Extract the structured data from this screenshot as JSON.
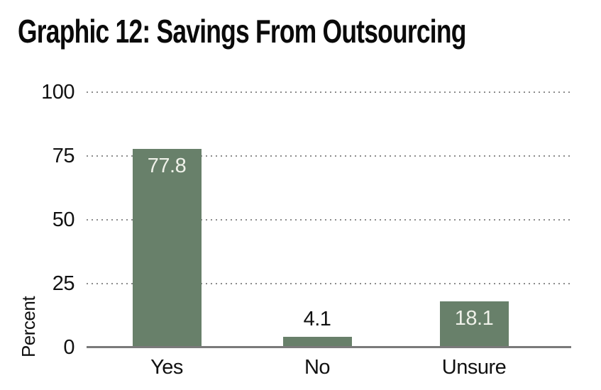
{
  "figure": {
    "title": "Graphic 12: Savings From Outsourcing"
  },
  "colors": {
    "bar": "#68806a",
    "axis_line": "#7a7a7a",
    "gridline": "#8b8b8b",
    "text": "#111111",
    "value_label_light": "#eff1e9",
    "background": "#ffffff"
  },
  "chart_data": {
    "type": "bar",
    "title": "Graphic 12: Savings From Outsourcing",
    "categories": [
      "Yes",
      "No",
      "Unsure"
    ],
    "values": [
      77.8,
      4.1,
      18.1
    ],
    "value_labels": [
      "77.8",
      "4.1",
      "18.1"
    ],
    "xlabel": "",
    "ylabel": "Percent",
    "ylim": [
      0,
      100
    ],
    "yticks": [
      0,
      25,
      50,
      75,
      100
    ],
    "grid": "horizontal-dotted",
    "legend": "none",
    "bar_color": "#68806a"
  }
}
